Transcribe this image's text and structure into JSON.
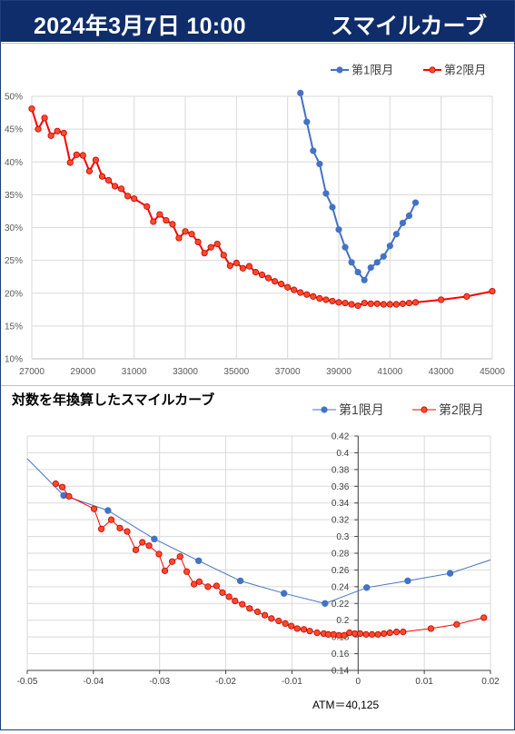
{
  "header": {
    "date": "2024年3月7日 10:00",
    "title": "スマイルカーブ"
  },
  "colors": {
    "header_bg": "#0f2d6b",
    "series1": "#4472c4",
    "series2": "#ff0000",
    "series2_marker": "#ff4a2a"
  },
  "chart_data": [
    {
      "type": "line",
      "title": "",
      "xlabel": "",
      "ylabel": "",
      "xlim": [
        27000,
        45000
      ],
      "ylim": [
        0.1,
        0.5
      ],
      "x_ticks": [
        "27000",
        "29000",
        "31000",
        "33000",
        "35000",
        "37000",
        "39000",
        "41000",
        "43000",
        "45000"
      ],
      "y_ticks": [
        "10%",
        "15%",
        "20%",
        "25%",
        "30%",
        "35%",
        "40%",
        "45%",
        "50%"
      ],
      "grid": true,
      "legend": "top-right",
      "series": [
        {
          "name": "第1限月",
          "x": [
            37500,
            37750,
            38000,
            38250,
            38500,
            38750,
            39000,
            39250,
            39500,
            39750,
            40000,
            40250,
            40500,
            40750,
            41000,
            41250,
            41500,
            41750,
            42000
          ],
          "y": [
            0.505,
            0.461,
            0.417,
            0.397,
            0.352,
            0.331,
            0.297,
            0.27,
            0.247,
            0.232,
            0.22,
            0.239,
            0.247,
            0.256,
            0.272,
            0.29,
            0.307,
            0.318,
            0.338
          ]
        },
        {
          "name": "第2限月",
          "x": [
            27000,
            27250,
            27500,
            27750,
            28000,
            28250,
            28500,
            28750,
            29000,
            29250,
            29500,
            29750,
            30000,
            30250,
            30500,
            30750,
            31000,
            31500,
            31750,
            32000,
            32250,
            32500,
            32750,
            33000,
            33250,
            33500,
            33750,
            34000,
            34250,
            34500,
            34750,
            35000,
            35250,
            35500,
            35750,
            36000,
            36250,
            36500,
            36750,
            37000,
            37250,
            37500,
            37750,
            38000,
            38250,
            38500,
            38750,
            39000,
            39250,
            39500,
            39750,
            40000,
            40250,
            40500,
            40750,
            41000,
            41250,
            41500,
            41750,
            42000,
            43000,
            44000,
            45000
          ],
          "y": [
            0.481,
            0.45,
            0.467,
            0.44,
            0.447,
            0.444,
            0.399,
            0.411,
            0.41,
            0.386,
            0.403,
            0.378,
            0.372,
            0.363,
            0.359,
            0.348,
            0.344,
            0.332,
            0.309,
            0.32,
            0.311,
            0.305,
            0.284,
            0.294,
            0.29,
            0.278,
            0.261,
            0.27,
            0.275,
            0.258,
            0.242,
            0.246,
            0.238,
            0.241,
            0.232,
            0.228,
            0.223,
            0.218,
            0.214,
            0.209,
            0.205,
            0.201,
            0.198,
            0.195,
            0.192,
            0.19,
            0.188,
            0.186,
            0.185,
            0.183,
            0.181,
            0.185,
            0.184,
            0.184,
            0.183,
            0.183,
            0.183,
            0.184,
            0.185,
            0.186,
            0.19,
            0.195,
            0.203
          ]
        }
      ]
    },
    {
      "type": "line",
      "title": "対数を年換算したスマイルカーブ",
      "xlabel": "",
      "ylabel": "",
      "xlim": [
        -0.05,
        0.02
      ],
      "ylim": [
        0.14,
        0.42
      ],
      "x_ticks": [
        "-0.05",
        "-0.04",
        "-0.03",
        "-0.02",
        "-0.01",
        "0",
        "0.01",
        "0.02"
      ],
      "y_ticks": [
        "0.14",
        "0.16",
        "0.18",
        "0.2",
        "0.22",
        "0.24",
        "0.26",
        "0.28",
        "0.3",
        "0.32",
        "0.34",
        "0.36",
        "0.38",
        "0.4",
        "0.42"
      ],
      "grid": true,
      "legend": "top-right",
      "annotation": "ATM＝40,125",
      "series": [
        {
          "name": "第1限月",
          "x": [
            -0.05,
            -0.0445,
            -0.0378,
            -0.0308,
            -0.0241,
            -0.0178,
            -0.0112,
            -0.005,
            0.0013,
            0.0075,
            0.0139,
            0.02
          ],
          "y": [
            0.393,
            0.349,
            0.331,
            0.297,
            0.271,
            0.247,
            0.232,
            0.22,
            0.239,
            0.247,
            0.256,
            0.272
          ]
        },
        {
          "name": "第2限月",
          "x": [
            -0.0457,
            -0.0447,
            -0.0437,
            -0.0399,
            -0.0388,
            -0.0373,
            -0.036,
            -0.0349,
            -0.0336,
            -0.0326,
            -0.0316,
            -0.0301,
            -0.0292,
            -0.0281,
            -0.0269,
            -0.0259,
            -0.0248,
            -0.024,
            -0.0227,
            -0.0214,
            -0.0205,
            -0.0195,
            -0.0186,
            -0.0175,
            -0.0164,
            -0.0152,
            -0.0141,
            -0.0131,
            -0.012,
            -0.011,
            -0.0101,
            -0.0092,
            -0.0082,
            -0.0073,
            -0.0062,
            -0.0052,
            -0.0045,
            -0.0037,
            -0.0029,
            -0.0021,
            -0.0013,
            -0.0005,
            0.0003,
            0.0012,
            0.0021,
            0.003,
            0.0039,
            0.0048,
            0.0058,
            0.0068,
            0.011,
            0.0149,
            0.019
          ],
          "y": [
            0.363,
            0.359,
            0.348,
            0.333,
            0.309,
            0.32,
            0.31,
            0.306,
            0.284,
            0.293,
            0.289,
            0.279,
            0.259,
            0.27,
            0.276,
            0.258,
            0.243,
            0.246,
            0.24,
            0.241,
            0.233,
            0.228,
            0.223,
            0.219,
            0.214,
            0.21,
            0.206,
            0.202,
            0.199,
            0.196,
            0.193,
            0.19,
            0.189,
            0.187,
            0.185,
            0.184,
            0.183,
            0.183,
            0.182,
            0.182,
            0.185,
            0.184,
            0.184,
            0.183,
            0.183,
            0.183,
            0.184,
            0.185,
            0.186,
            0.186,
            0.19,
            0.195,
            0.203
          ]
        }
      ]
    }
  ]
}
